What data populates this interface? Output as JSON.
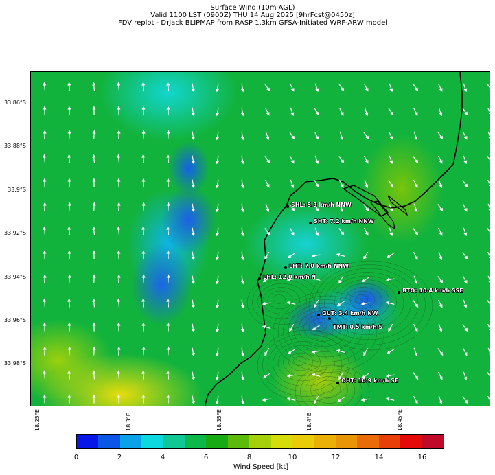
{
  "title": {
    "line1": "Surface Wind (10m AGL)",
    "line2": "Valid 1100 LST (0900Z) THU 14 Aug 2025 [9hrFcst@0450z]",
    "line3": "FDV replot - DrJack BLIPMAP from RASP 1.3km GFSA-Initiated WRF-ARW model"
  },
  "y_axis_labels": [
    "33.86°S",
    "33.88°S",
    "33.9°S",
    "33.92°S",
    "33.94°S",
    "33.96°S",
    "33.98°S"
  ],
  "x_axis_labels": [
    "18.25°E",
    "18.3°E",
    "18.35°E",
    "18.4°E",
    "18.45°E"
  ],
  "sites": [
    {
      "label": "SHL: 5.3 km/h NNW"
    },
    {
      "label": "SHT: 7.2 km/h NNW"
    },
    {
      "label": "LHT: 7.0 km/h NNW"
    },
    {
      "label": "LHL: 12.0 km/h N"
    },
    {
      "label": "BTO: 10.4 km/h SSE"
    },
    {
      "label": "GUT: 3.4 km/h NW"
    },
    {
      "label": "TMT: 0.5 km/h S"
    },
    {
      "label": "OHT: 10.9 km/h SE"
    }
  ],
  "colorbar": {
    "title": "Wind Speed [kt]",
    "ticks": [
      "0",
      "2",
      "4",
      "6",
      "8",
      "10",
      "12",
      "14",
      "16"
    ],
    "colors": [
      "#0717e8",
      "#0a56e6",
      "#0aa1e8",
      "#0dd8e0",
      "#10c896",
      "#0db84a",
      "#18aa14",
      "#5cba0a",
      "#a6cf0c",
      "#d6dc0a",
      "#e8cc08",
      "#eab008",
      "#ea9408",
      "#ea6c08",
      "#e83e08",
      "#e40a0a",
      "#c00a28"
    ]
  },
  "map": {
    "land_color": "#12b33c",
    "arrow_color": "#ffffff",
    "coast_color": "#000000"
  }
}
